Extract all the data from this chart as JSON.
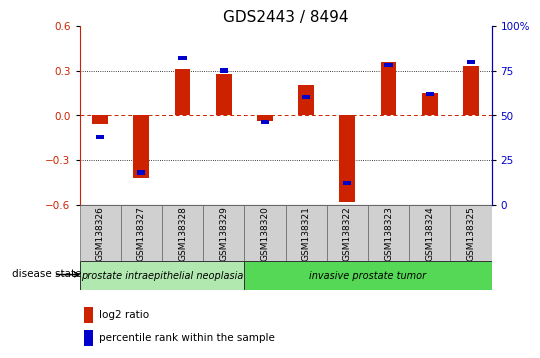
{
  "title": "GDS2443 / 8494",
  "samples": [
    "GSM138326",
    "GSM138327",
    "GSM138328",
    "GSM138329",
    "GSM138320",
    "GSM138321",
    "GSM138322",
    "GSM138323",
    "GSM138324",
    "GSM138325"
  ],
  "log2_ratio": [
    -0.06,
    -0.42,
    0.31,
    0.28,
    -0.04,
    0.2,
    -0.58,
    0.36,
    0.15,
    0.33
  ],
  "percentile_rank": [
    38,
    18,
    82,
    75,
    46,
    60,
    12,
    78,
    62,
    80
  ],
  "disease_groups": [
    {
      "label": "prostate intraepithelial neoplasia",
      "start": 0,
      "end": 4
    },
    {
      "label": "invasive prostate tumor",
      "start": 4,
      "end": 10
    }
  ],
  "group_colors": [
    "#b0e8b0",
    "#55d855"
  ],
  "label_bg": "#d0d0d0",
  "ylim_left": [
    -0.6,
    0.6
  ],
  "ylim_right": [
    0,
    100
  ],
  "yticks_left": [
    -0.6,
    -0.3,
    0.0,
    0.3,
    0.6
  ],
  "yticks_right": [
    0,
    25,
    50,
    75,
    100
  ],
  "yticklabels_right": [
    "0",
    "25",
    "50",
    "75",
    "100%"
  ],
  "bar_color_red": "#CC2200",
  "bar_color_blue": "#0000CC",
  "bar_width": 0.38,
  "pct_bar_width": 0.2,
  "pct_bar_height": 0.028,
  "legend_items": [
    {
      "label": "log2 ratio",
      "color": "#CC2200"
    },
    {
      "label": "percentile rank within the sample",
      "color": "#0000CC"
    }
  ],
  "title_fontsize": 11,
  "tick_fontsize": 7.5,
  "sample_fontsize": 6.5,
  "small_fontsize": 7.5
}
